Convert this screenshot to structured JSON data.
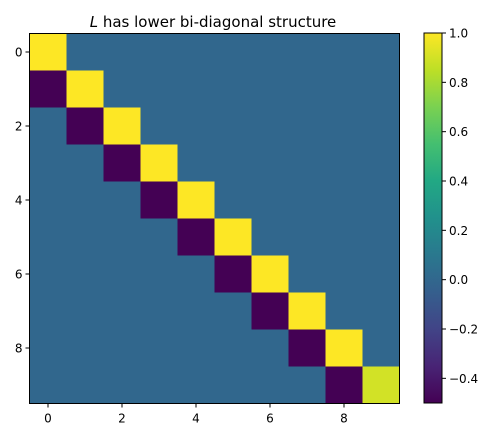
{
  "chart_data": {
    "type": "heatmap",
    "title_prefix": "L",
    "title_suffix": " has lower bi-diagonal structure",
    "rows": 10,
    "cols": 10,
    "values": [
      [
        1,
        0,
        0,
        0,
        0,
        0,
        0,
        0,
        0,
        0
      ],
      [
        -0.5,
        1,
        0,
        0,
        0,
        0,
        0,
        0,
        0,
        0
      ],
      [
        0,
        -0.5,
        1,
        0,
        0,
        0,
        0,
        0,
        0,
        0
      ],
      [
        0,
        0,
        -0.5,
        1,
        0,
        0,
        0,
        0,
        0,
        0
      ],
      [
        0,
        0,
        0,
        -0.5,
        1,
        0,
        0,
        0,
        0,
        0
      ],
      [
        0,
        0,
        0,
        0,
        -0.5,
        1,
        0,
        0,
        0,
        0
      ],
      [
        0,
        0,
        0,
        0,
        0,
        -0.5,
        1,
        0,
        0,
        0
      ],
      [
        0,
        0,
        0,
        0,
        0,
        0,
        -0.5,
        1,
        0,
        0
      ],
      [
        0,
        0,
        0,
        0,
        0,
        0,
        0,
        -0.5,
        1,
        0
      ],
      [
        0,
        0,
        0,
        0,
        0,
        0,
        0,
        0,
        -0.5,
        0.9
      ]
    ],
    "x_ticks": [
      0,
      2,
      4,
      6,
      8
    ],
    "y_ticks": [
      0,
      2,
      4,
      6,
      8
    ],
    "colormap": "viridis",
    "colorbar": {
      "range": [
        -0.5,
        1.0
      ],
      "ticks": [
        1.0,
        0.8,
        0.6,
        0.4,
        0.2,
        0.0,
        -0.2,
        -0.4
      ],
      "tick_labels": [
        "1.0",
        "0.8",
        "0.6",
        "0.4",
        "0.2",
        "0.0",
        "−0.2",
        "−0.4"
      ]
    },
    "grid": false
  }
}
